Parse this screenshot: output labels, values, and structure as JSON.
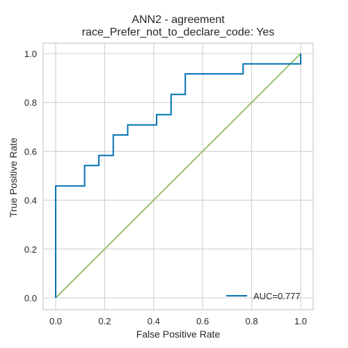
{
  "chart_data": {
    "type": "line",
    "title": "ANN2 - agreement",
    "subtitle": "race_Prefer_not_to_declare_code: Yes",
    "xlabel": "False Positive Rate",
    "ylabel": "True Positive Rate",
    "xlim": [
      0.0,
      1.0
    ],
    "ylim": [
      0.0,
      1.0
    ],
    "xticks": [
      "0.0",
      "0.2",
      "0.4",
      "0.6",
      "0.8",
      "1.0"
    ],
    "yticks": [
      "0.0",
      "0.2",
      "0.4",
      "0.6",
      "0.8",
      "1.0"
    ],
    "grid": true,
    "legend_position": "lower-right",
    "series": [
      {
        "name": "AUC=0.777",
        "color": "#0072b2",
        "x": [
          0.0,
          0.0,
          0.118,
          0.118,
          0.176,
          0.176,
          0.235,
          0.235,
          0.294,
          0.294,
          0.412,
          0.412,
          0.471,
          0.471,
          0.529,
          0.529,
          0.765,
          0.765,
          1.0,
          1.0
        ],
        "y": [
          0.0,
          0.458,
          0.458,
          0.542,
          0.542,
          0.583,
          0.583,
          0.667,
          0.667,
          0.708,
          0.708,
          0.75,
          0.75,
          0.833,
          0.833,
          0.917,
          0.917,
          0.958,
          0.958,
          1.0
        ]
      },
      {
        "name": "",
        "color": "#95c26e",
        "x": [
          0.0,
          1.0
        ],
        "y": [
          0.0,
          1.0
        ]
      }
    ]
  }
}
